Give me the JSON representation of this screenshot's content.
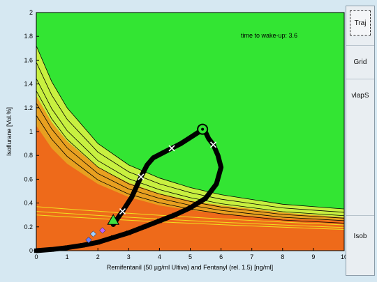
{
  "chart_data": {
    "type": "line",
    "xlabel": "Remifentanil (50 µg/ml Ultiva) and Fentanyl (rel. 1.5) [ng/ml]",
    "ylabel": "Isoflurane [Vol.%]",
    "xlim": [
      0,
      10
    ],
    "ylim": [
      0,
      2
    ],
    "x_ticks": [
      "0",
      "1",
      "2",
      "3",
      "4",
      "5",
      "6",
      "7",
      "8",
      "9",
      "10"
    ],
    "y_ticks": [
      "0",
      "0.2",
      "0.4",
      "0.6",
      "0.8",
      "1",
      "1.2",
      "1.4",
      "1.6",
      "1.8",
      "2"
    ],
    "annotation": "time to wake-up: 3.6",
    "isobole_curves": [
      {
        "region": "yellow-green",
        "points": [
          [
            0,
            1.72
          ],
          [
            0.5,
            1.42
          ],
          [
            1,
            1.2
          ],
          [
            2,
            0.9
          ],
          [
            3,
            0.72
          ],
          [
            4,
            0.61
          ],
          [
            5,
            0.53
          ],
          [
            6,
            0.47
          ],
          [
            7,
            0.43
          ],
          [
            8,
            0.39
          ],
          [
            9,
            0.37
          ],
          [
            10,
            0.35
          ]
        ]
      },
      {
        "region": "yellow",
        "points": [
          [
            0,
            1.3
          ],
          [
            0.5,
            1.08
          ],
          [
            1,
            0.92
          ],
          [
            2,
            0.7
          ],
          [
            3,
            0.57
          ],
          [
            4,
            0.48
          ],
          [
            5,
            0.42
          ],
          [
            6,
            0.38
          ],
          [
            7,
            0.35
          ],
          [
            8,
            0.32
          ],
          [
            9,
            0.3
          ],
          [
            10,
            0.28
          ]
        ]
      },
      {
        "region": "orange",
        "points": [
          [
            0,
            1.05
          ],
          [
            0.5,
            0.86
          ],
          [
            1,
            0.73
          ],
          [
            2,
            0.56
          ],
          [
            3,
            0.45
          ],
          [
            4,
            0.38
          ],
          [
            5,
            0.34
          ],
          [
            6,
            0.31
          ],
          [
            7,
            0.29
          ],
          [
            8,
            0.27
          ],
          [
            9,
            0.26
          ],
          [
            10,
            0.25
          ]
        ]
      }
    ],
    "trajectory": {
      "points": [
        [
          2.5,
          0.22
        ],
        [
          2.8,
          0.33
        ],
        [
          3.1,
          0.45
        ],
        [
          3.4,
          0.62
        ],
        [
          3.6,
          0.72
        ],
        [
          3.8,
          0.78
        ],
        [
          4.1,
          0.82
        ],
        [
          4.4,
          0.86
        ],
        [
          4.7,
          0.9
        ],
        [
          5.0,
          0.95
        ],
        [
          5.3,
          1.0
        ],
        [
          5.45,
          1.02
        ],
        [
          5.6,
          0.94
        ],
        [
          5.75,
          0.89
        ],
        [
          5.9,
          0.8
        ],
        [
          6.0,
          0.7
        ],
        [
          5.85,
          0.56
        ],
        [
          5.5,
          0.44
        ],
        [
          5.0,
          0.36
        ],
        [
          4.5,
          0.3
        ],
        [
          4.0,
          0.25
        ],
        [
          3.5,
          0.2
        ],
        [
          3.0,
          0.15
        ],
        [
          2.5,
          0.11
        ],
        [
          2.0,
          0.07
        ],
        [
          1.5,
          0.045
        ],
        [
          1.0,
          0.025
        ],
        [
          0.5,
          0.01
        ],
        [
          0,
          0
        ]
      ],
      "marked_points": [
        [
          2.8,
          0.33
        ],
        [
          3.4,
          0.62
        ],
        [
          4.4,
          0.86
        ],
        [
          5.75,
          0.89
        ]
      ],
      "current_point": [
        5.4,
        1.02
      ],
      "start_triangle": [
        2.5,
        0.25
      ],
      "small_markers": [
        [
          1.85,
          0.14
        ],
        [
          2.15,
          0.17
        ],
        [
          1.7,
          0.09
        ]
      ]
    }
  },
  "side_panel": {
    "buttons": [
      {
        "label": "Traj",
        "pressed": true
      },
      {
        "label": "Grid",
        "pressed": false
      },
      {
        "label": "vlapS",
        "pressed": false
      },
      {
        "label": "Isob",
        "pressed": false
      }
    ]
  },
  "colors": {
    "background": "#d6e8f2",
    "green": "#33e533",
    "yellow_green": "#c8f040",
    "yellow": "#f0e020",
    "gold": "#e8a020",
    "orange": "#ee6a1a",
    "trajectory": "#000000"
  }
}
